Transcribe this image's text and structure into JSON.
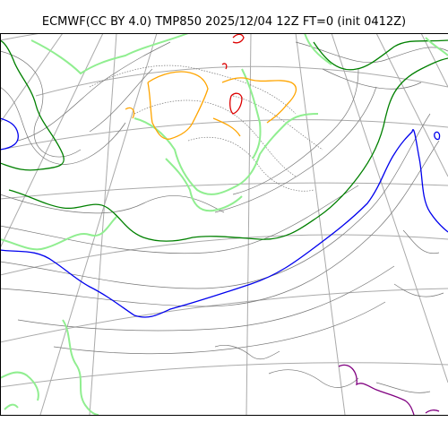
{
  "title": "ECMWF(CC BY 4.0) TMP850 2025/12/04 12Z FT=0 (init 0412Z)",
  "colors": {
    "graticule": "#aaaaaa",
    "coastline": "#555555",
    "isotherm_minor": "#777777",
    "isotherm_0C": "#0000ee",
    "isotherm_minus6C": "#008000",
    "isotherm_minus12C": "#90ee90",
    "isotherm_minus18C": "#ffa500",
    "isotherm_minus24C": "#dd0000",
    "isotherm_6C": "#800080"
  }
}
